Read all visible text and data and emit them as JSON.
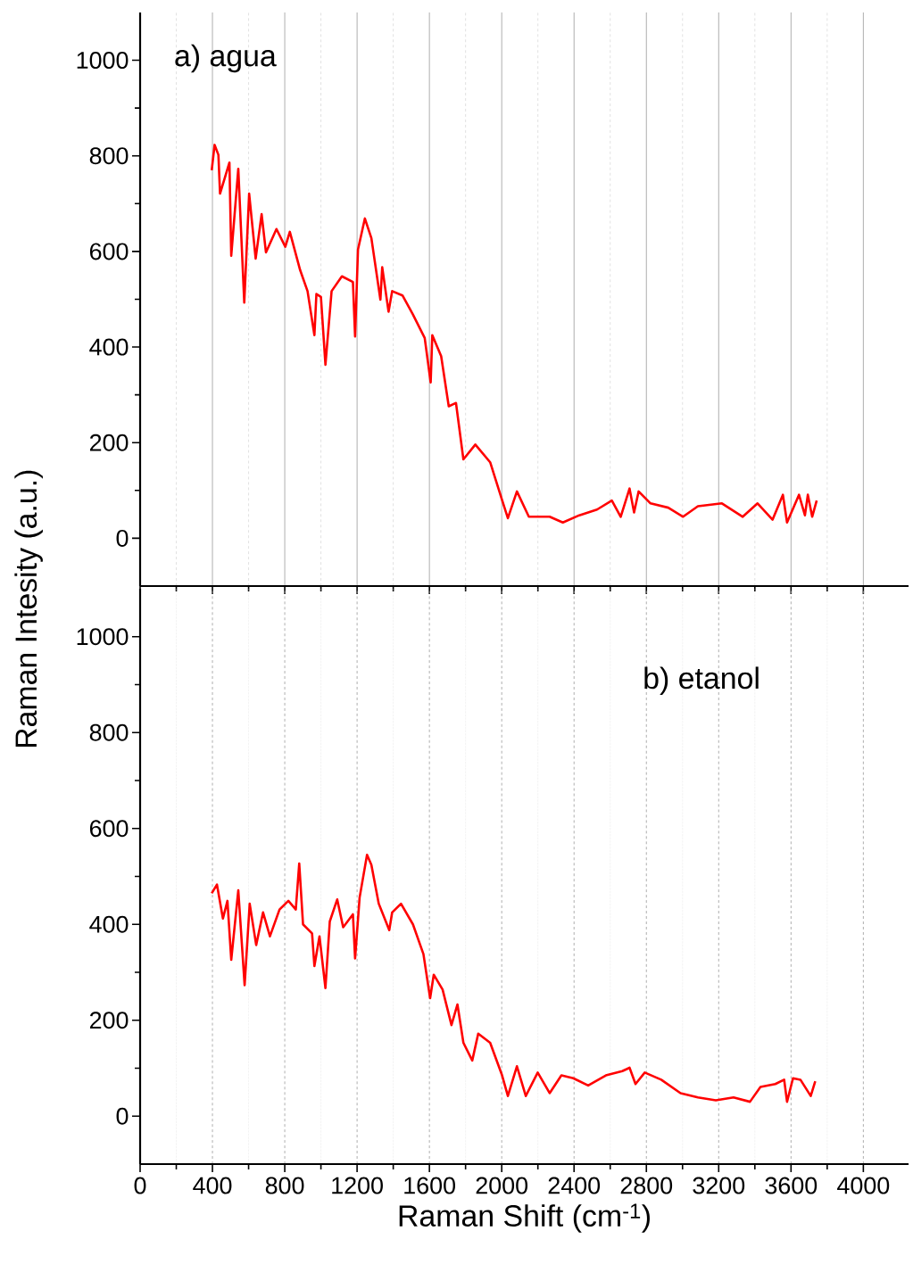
{
  "chart_data": [
    {
      "type": "line",
      "ylabel": "Raman Intesity (a.u.)",
      "annotations": [
        "a) agua"
      ],
      "xlim": [
        0,
        4250
      ],
      "ylim": [
        -100,
        1100
      ],
      "xticks": [
        0,
        400,
        800,
        1200,
        1600,
        2000,
        2400,
        2800,
        3200,
        3600,
        4000
      ],
      "yticks": [
        0,
        200,
        400,
        600,
        800,
        1000
      ],
      "tick_labels": "y",
      "grid": "x",
      "series": [
        {
          "color": "#ff0000",
          "x": [
            396,
            412,
            433,
            442,
            494,
            504,
            543,
            576,
            603,
            639,
            672,
            696,
            754,
            803,
            828,
            885,
            926,
            964,
            975,
            1000,
            1025,
            1059,
            1116,
            1177,
            1189,
            1205,
            1243,
            1279,
            1329,
            1339,
            1374,
            1394,
            1451,
            1509,
            1574,
            1607,
            1616,
            1665,
            1707,
            1747,
            1788,
            1854,
            1936,
            2002,
            2034,
            2084,
            2150,
            2265,
            2338,
            2429,
            2527,
            2609,
            2658,
            2707,
            2732,
            2757,
            2823,
            2921,
            3003,
            3085,
            3218,
            3333,
            3415,
            3498,
            3555,
            3578,
            3644,
            3677,
            3693,
            3717,
            3742
          ],
          "values": [
            770,
            823,
            802,
            721,
            786,
            591,
            773,
            493,
            721,
            585,
            678,
            598,
            647,
            610,
            641,
            561,
            517,
            425,
            511,
            505,
            363,
            517,
            548,
            536,
            422,
            604,
            669,
            628,
            499,
            567,
            474,
            517,
            508,
            468,
            419,
            326,
            425,
            381,
            276,
            283,
            165,
            196,
            159,
            80,
            42,
            98,
            45,
            45,
            33,
            48,
            60,
            79,
            45,
            104,
            54,
            98,
            73,
            64,
            45,
            67,
            73,
            45,
            73,
            39,
            91,
            33,
            91,
            48,
            91,
            45,
            79
          ]
        }
      ]
    },
    {
      "type": "line",
      "xlabel": "Raman Shift (cm$^{-1}$)",
      "annotations": [
        "b) etanol"
      ],
      "xlim": [
        0,
        4250
      ],
      "ylim": [
        -100,
        1100
      ],
      "xticks": [
        0,
        400,
        800,
        1200,
        1600,
        2000,
        2400,
        2800,
        3200,
        3600,
        4000
      ],
      "yticks": [
        0,
        200,
        400,
        600,
        800,
        1000
      ],
      "grid": "x",
      "series": [
        {
          "color": "#ff0000",
          "x": [
            396,
            425,
            458,
            483,
            504,
            543,
            578,
            606,
            642,
            680,
            718,
            771,
            820,
            861,
            880,
            901,
            951,
            964,
            992,
            1025,
            1049,
            1090,
            1123,
            1177,
            1189,
            1214,
            1255,
            1279,
            1320,
            1378,
            1394,
            1443,
            1509,
            1567,
            1604,
            1624,
            1673,
            1722,
            1755,
            1788,
            1837,
            1870,
            1936,
            2002,
            2034,
            2084,
            2133,
            2199,
            2265,
            2330,
            2396,
            2478,
            2576,
            2667,
            2707,
            2740,
            2791,
            2882,
            2989,
            3085,
            3184,
            3282,
            3373,
            3431,
            3513,
            3562,
            3578,
            3611,
            3652,
            3709,
            3734
          ],
          "values": [
            465,
            483,
            412,
            449,
            326,
            471,
            273,
            443,
            357,
            425,
            375,
            431,
            449,
            431,
            527,
            400,
            381,
            313,
            375,
            267,
            406,
            452,
            394,
            421,
            329,
            456,
            545,
            524,
            443,
            388,
            425,
            443,
            400,
            338,
            246,
            295,
            264,
            190,
            233,
            153,
            116,
            172,
            153,
            85,
            42,
            104,
            42,
            91,
            48,
            85,
            79,
            64,
            85,
            94,
            101,
            67,
            91,
            76,
            48,
            39,
            33,
            39,
            30,
            61,
            67,
            76,
            30,
            79,
            76,
            42,
            73
          ]
        }
      ]
    }
  ]
}
